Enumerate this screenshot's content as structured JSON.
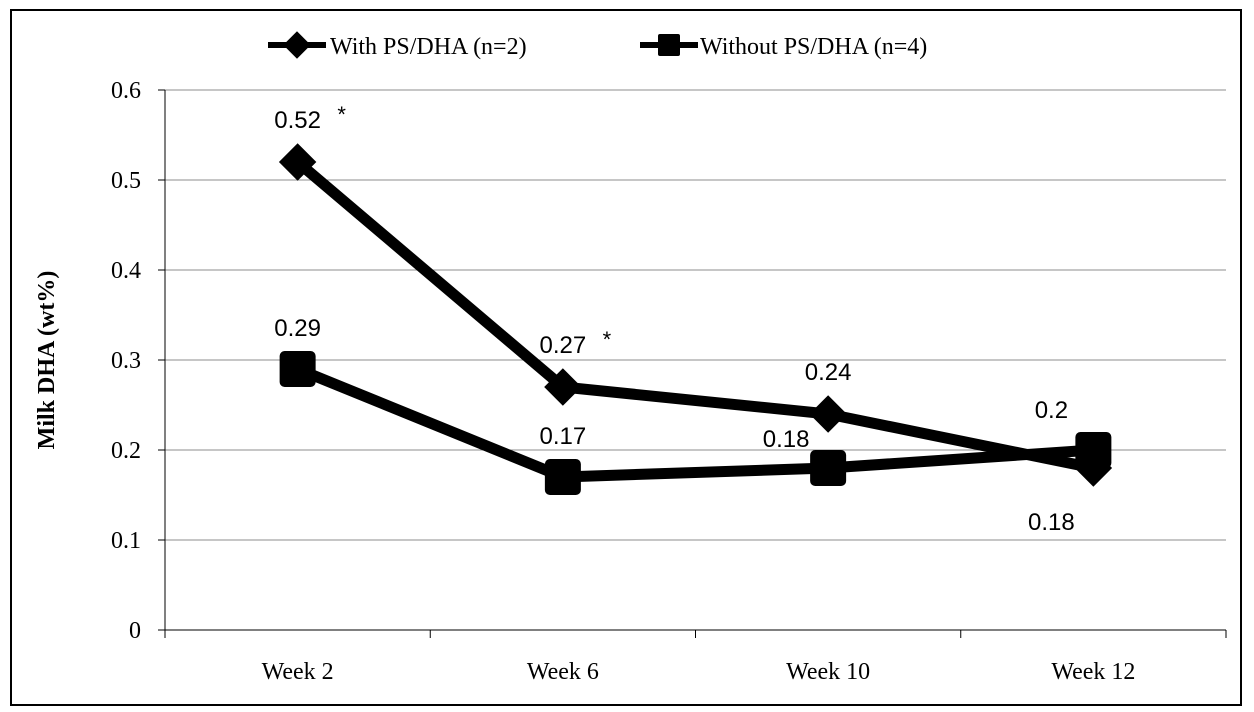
{
  "chart_data": {
    "type": "line",
    "categories": [
      "Week 2",
      "Week 6",
      "Week 10",
      "Week 12"
    ],
    "series": [
      {
        "name": "With PS/DHA (n=2)",
        "marker": "diamond",
        "values": [
          0.52,
          0.27,
          0.24,
          0.18
        ],
        "labels": [
          "0.52",
          "0.27",
          "0.24",
          "0.18"
        ],
        "annotations": [
          "*",
          "*",
          "",
          ""
        ]
      },
      {
        "name": "Without PS/DHA (n=4)",
        "marker": "square",
        "values": [
          0.29,
          0.17,
          0.18,
          0.2
        ],
        "labels": [
          "0.29",
          "0.17",
          "0.18",
          "0.2"
        ],
        "annotations": [
          "",
          "",
          "",
          ""
        ]
      }
    ],
    "ylabel": "Milk DHA (wt%)",
    "xlabel": "",
    "ylim": [
      0,
      0.6
    ],
    "yticks": [
      "0",
      "0.1",
      "0.2",
      "0.3",
      "0.4",
      "0.5",
      "0.6"
    ],
    "grid": true,
    "legend_position": "top",
    "colors": {
      "line": "#000000",
      "grid": "#8c8c8c",
      "background": "#ffffff"
    }
  }
}
